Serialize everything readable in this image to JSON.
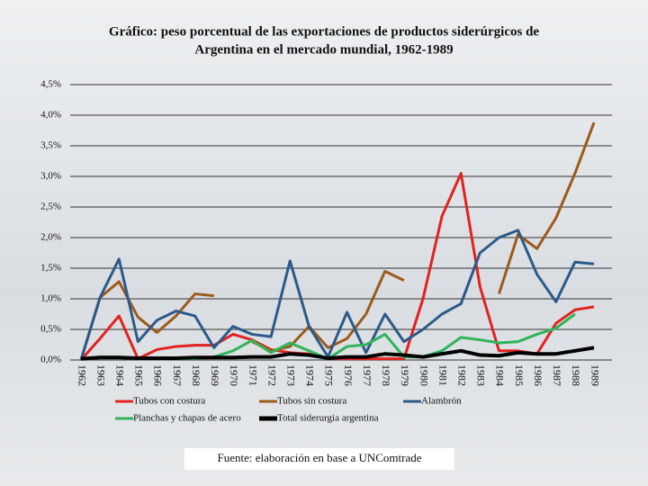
{
  "chart_data": {
    "type": "line",
    "title": [
      "Gráfico: peso porcentual de las exportaciones de productos siderúrgicos de",
      "Argentina en el mercado mundial, 1962-1989"
    ],
    "categories": [
      "1962",
      "1963",
      "1964",
      "1965",
      "1966",
      "1967",
      "1968",
      "1969",
      "1970",
      "1971",
      "1972",
      "1973",
      "1974",
      "1975",
      "1976",
      "1977",
      "1978",
      "1979",
      "1980",
      "1981",
      "1982",
      "1983",
      "1984",
      "1985",
      "1986",
      "1987",
      "1988",
      "1989"
    ],
    "series": [
      {
        "name": "Tubos con costura",
        "color": "#e0231f",
        "values": [
          0,
          0.35,
          0.72,
          0.02,
          0.17,
          0.22,
          0.24,
          0.24,
          0.42,
          0.33,
          0.17,
          0.12,
          0.1,
          0.02,
          0.02,
          0.02,
          0.02,
          0.02,
          1.0,
          2.35,
          3.05,
          1.2,
          0.15,
          0.15,
          0.1,
          0.6,
          0.82,
          0.87
        ]
      },
      {
        "name": "Tubos sin costura",
        "color": "#9c5a1c",
        "values": [
          0,
          1.02,
          1.28,
          0.7,
          0.45,
          0.72,
          1.08,
          1.05,
          null,
          0.3,
          0.15,
          0.22,
          0.55,
          0.2,
          0.35,
          0.75,
          1.45,
          1.3,
          null,
          null,
          null,
          null,
          1.08,
          2.05,
          1.82,
          2.32,
          3.05,
          3.88
        ]
      },
      {
        "name": "Alambrón",
        "color": "#2b5a8a",
        "values": [
          0,
          1.02,
          1.65,
          0.3,
          0.65,
          0.8,
          0.72,
          0.2,
          0.55,
          0.42,
          0.38,
          1.62,
          0.55,
          0.05,
          0.78,
          0.12,
          0.75,
          0.3,
          0.5,
          0.75,
          0.92,
          1.75,
          2.0,
          2.12,
          1.4,
          0.95,
          1.6,
          1.57
        ]
      },
      {
        "name": "Planchas y chapas de acero",
        "color": "#2fb45a",
        "values": [
          0.02,
          0.05,
          0.05,
          0.02,
          0.02,
          0.02,
          0.02,
          0.05,
          0.15,
          0.32,
          0.12,
          0.28,
          0.15,
          0.02,
          0.22,
          0.25,
          0.42,
          0.05,
          0.05,
          0.15,
          0.37,
          0.33,
          0.28,
          0.3,
          0.42,
          0.52,
          0.75,
          null
        ]
      },
      {
        "name": "Total siderurgia argentina",
        "color": "#000000",
        "values": [
          0.02,
          0.04,
          0.04,
          0.03,
          0.03,
          0.03,
          0.04,
          0.04,
          0.04,
          0.05,
          0.05,
          0.1,
          0.08,
          0.03,
          0.05,
          0.05,
          0.1,
          0.08,
          0.05,
          0.1,
          0.15,
          0.08,
          0.07,
          0.12,
          0.1,
          0.1,
          0.15,
          0.2
        ]
      }
    ],
    "ylim": [
      0,
      4.5
    ],
    "yticks": [
      {
        "value": 0,
        "label": "0,0%"
      },
      {
        "value": 0.5,
        "label": "0,5%"
      },
      {
        "value": 1,
        "label": "1,0%"
      },
      {
        "value": 1.5,
        "label": "1,5%"
      },
      {
        "value": 2,
        "label": "2,0%"
      },
      {
        "value": 2.5,
        "label": "2,5%"
      },
      {
        "value": 3,
        "label": "3,0%"
      },
      {
        "value": 3.5,
        "label": "3,5%"
      },
      {
        "value": 4,
        "label": "4,0%"
      },
      {
        "value": 4.5,
        "label": "4,5%"
      }
    ],
    "grid": true,
    "source": "Fuente: elaboración en base a UNComtrade"
  }
}
